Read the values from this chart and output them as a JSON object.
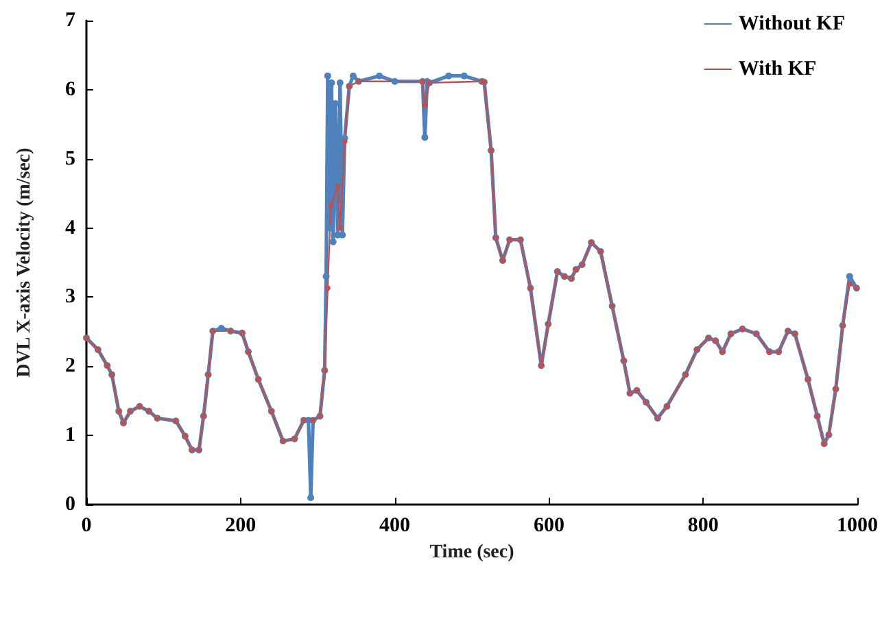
{
  "chart_data": {
    "type": "line",
    "xlabel": "Time (sec)",
    "ylabel": "DVL X-axis Velocity (m/sec)",
    "xlim": [
      0,
      1000
    ],
    "xticks": [
      0,
      200,
      400,
      600,
      800,
      {
        "value": 1000,
        "label": "1000"
      }
    ],
    "ylim": [
      0,
      7
    ],
    "yticks": [
      0,
      1,
      2,
      3,
      4,
      5,
      6,
      7
    ],
    "grid": false,
    "legend": "top right",
    "marker": "circle",
    "line_style": "solid",
    "series": [
      {
        "name": "Without KF",
        "color": "#4f81bd",
        "x": [
          0,
          15,
          27,
          33,
          42,
          48,
          57,
          69,
          81,
          92,
          116,
          128,
          137,
          146,
          152,
          158,
          164,
          175,
          187,
          202,
          210,
          223,
          240,
          255,
          270,
          282,
          288,
          291,
          294,
          303,
          309,
          311,
          313,
          316,
          318,
          320,
          323,
          326,
          329,
          332,
          335,
          341,
          346,
          353,
          380,
          400,
          436,
          439,
          442,
          445,
          470,
          490,
          513,
          516,
          525,
          531,
          540,
          549,
          563,
          576,
          590,
          599,
          611,
          620,
          629,
          635,
          643,
          655,
          667,
          682,
          697,
          705,
          714,
          726,
          741,
          753,
          777,
          792,
          807,
          816,
          825,
          836,
          851,
          869,
          886,
          898,
          910,
          919,
          936,
          948,
          957,
          963,
          972,
          981,
          990,
          999
        ],
        "values": [
          2.41,
          2.24,
          2.01,
          1.88,
          1.35,
          1.18,
          1.35,
          1.42,
          1.35,
          1.25,
          1.21,
          0.99,
          0.79,
          0.79,
          1.28,
          1.88,
          2.51,
          2.55,
          2.51,
          2.48,
          2.21,
          1.81,
          1.35,
          0.92,
          0.95,
          1.22,
          1.22,
          0.1,
          1.22,
          1.28,
          1.94,
          3.3,
          6.2,
          4.0,
          6.1,
          3.8,
          5.8,
          3.9,
          6.1,
          3.9,
          5.3,
          6.05,
          6.2,
          6.12,
          6.2,
          6.12,
          6.12,
          5.31,
          6.12,
          6.1,
          6.2,
          6.2,
          6.12,
          6.11,
          5.12,
          3.86,
          3.53,
          3.83,
          3.83,
          3.13,
          2.01,
          2.61,
          3.37,
          3.3,
          3.27,
          3.4,
          3.47,
          3.79,
          3.66,
          2.87,
          2.08,
          1.61,
          1.65,
          1.48,
          1.25,
          1.42,
          1.88,
          2.24,
          2.41,
          2.37,
          2.21,
          2.47,
          2.54,
          2.47,
          2.21,
          2.21,
          2.51,
          2.47,
          1.81,
          1.28,
          0.88,
          1.01,
          1.67,
          2.59,
          3.3,
          3.13
        ]
      },
      {
        "name": "With KF",
        "color": "#c0504d",
        "x": [
          0,
          15,
          27,
          33,
          42,
          48,
          57,
          69,
          81,
          92,
          116,
          128,
          137,
          146,
          152,
          158,
          164,
          187,
          202,
          210,
          223,
          240,
          255,
          270,
          282,
          294,
          303,
          309,
          313,
          317,
          326,
          329,
          335,
          341,
          353,
          436,
          439,
          445,
          513,
          516,
          525,
          531,
          540,
          549,
          563,
          576,
          590,
          599,
          611,
          620,
          629,
          635,
          643,
          655,
          667,
          682,
          697,
          705,
          714,
          726,
          741,
          753,
          777,
          792,
          807,
          816,
          825,
          836,
          851,
          869,
          886,
          898,
          910,
          919,
          936,
          948,
          957,
          963,
          972,
          981,
          990,
          999
        ],
        "values": [
          2.41,
          2.24,
          2.01,
          1.88,
          1.35,
          1.18,
          1.35,
          1.42,
          1.35,
          1.25,
          1.21,
          0.99,
          0.79,
          0.79,
          1.28,
          1.88,
          2.51,
          2.51,
          2.48,
          2.21,
          1.81,
          1.35,
          0.92,
          0.95,
          1.22,
          1.22,
          1.28,
          1.94,
          3.13,
          4.33,
          4.6,
          4.0,
          5.25,
          6.05,
          6.12,
          6.12,
          5.78,
          6.1,
          6.12,
          6.11,
          5.12,
          3.86,
          3.53,
          3.83,
          3.83,
          3.13,
          2.01,
          2.61,
          3.37,
          3.3,
          3.27,
          3.4,
          3.47,
          3.79,
          3.66,
          2.87,
          2.08,
          1.61,
          1.65,
          1.48,
          1.25,
          1.42,
          1.88,
          2.24,
          2.41,
          2.37,
          2.21,
          2.47,
          2.54,
          2.47,
          2.21,
          2.21,
          2.51,
          2.47,
          1.81,
          1.28,
          0.88,
          1.01,
          1.67,
          2.59,
          3.19,
          3.13
        ]
      }
    ]
  }
}
